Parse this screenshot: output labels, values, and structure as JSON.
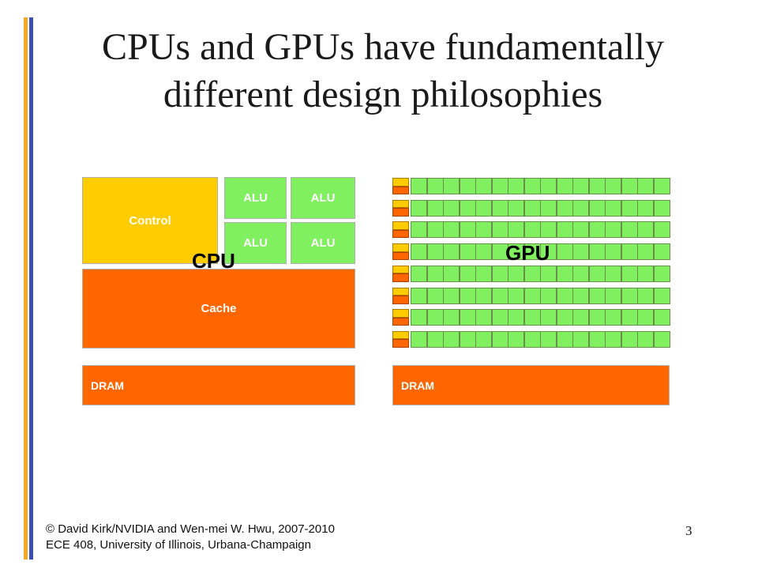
{
  "slide": {
    "title_line1": "CPUs and GPUs have fundamentally",
    "title_line2": "different design philosophies",
    "page_number": "3"
  },
  "cpu": {
    "label": "CPU",
    "control": "Control",
    "alus": [
      "ALU",
      "ALU",
      "ALU",
      "ALU"
    ],
    "cache": "Cache",
    "dram": "DRAM"
  },
  "gpu": {
    "label": "GPU",
    "dram": "DRAM",
    "rows": 8,
    "cores_per_row": 16
  },
  "footer": {
    "line1": "© David Kirk/NVIDIA and Wen-mei W. Hwu, 2007-2010",
    "line2": "ECE 408, University of Illinois, Urbana-Champaign"
  },
  "colors": {
    "stripe_orange": "#f5a623",
    "stripe_blue": "#3a4fb0",
    "control_yellow": "#ffcc00",
    "alu_green": "#80f060",
    "cache_orange": "#ff6600"
  }
}
